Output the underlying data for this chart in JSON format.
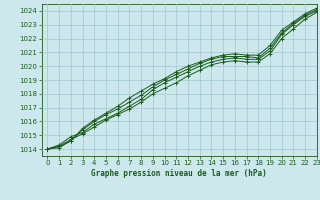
{
  "title": "Graphe pression niveau de la mer (hPa)",
  "bg_color": "#cce8ec",
  "grid_color": "#a8cdd4",
  "line_color": "#1a5c1a",
  "ylim": [
    1013.5,
    1024.5
  ],
  "xlim": [
    -0.5,
    23
  ],
  "yticks": [
    1014,
    1015,
    1016,
    1017,
    1018,
    1019,
    1020,
    1021,
    1022,
    1023,
    1024
  ],
  "xticks": [
    0,
    1,
    2,
    3,
    4,
    5,
    6,
    7,
    8,
    9,
    10,
    11,
    12,
    13,
    14,
    15,
    16,
    17,
    18,
    19,
    20,
    21,
    22,
    23
  ],
  "series": [
    [
      1014.0,
      1014.3,
      1014.9,
      1015.2,
      1015.8,
      1016.2,
      1016.6,
      1017.1,
      1017.6,
      1018.3,
      1018.8,
      1019.2,
      1019.6,
      1020.0,
      1020.3,
      1020.5,
      1020.6,
      1020.5,
      1020.5,
      1021.1,
      1022.3,
      1023.0,
      1023.6,
      1024.0
    ],
    [
      1014.0,
      1014.2,
      1014.7,
      1015.1,
      1015.6,
      1016.1,
      1016.5,
      1016.9,
      1017.4,
      1018.0,
      1018.4,
      1018.8,
      1019.3,
      1019.7,
      1020.1,
      1020.3,
      1020.4,
      1020.3,
      1020.3,
      1020.9,
      1022.0,
      1022.7,
      1023.4,
      1023.9
    ],
    [
      1014.0,
      1014.1,
      1014.6,
      1015.5,
      1016.1,
      1016.6,
      1017.1,
      1017.7,
      1018.2,
      1018.7,
      1019.1,
      1019.6,
      1020.0,
      1020.3,
      1020.6,
      1020.8,
      1020.9,
      1020.8,
      1020.8,
      1021.5,
      1022.6,
      1023.2,
      1023.8,
      1024.2
    ],
    [
      1014.0,
      1014.2,
      1014.6,
      1015.4,
      1016.0,
      1016.5,
      1016.9,
      1017.4,
      1017.9,
      1018.5,
      1019.0,
      1019.4,
      1019.8,
      1020.2,
      1020.5,
      1020.7,
      1020.7,
      1020.7,
      1020.6,
      1021.3,
      1022.4,
      1023.1,
      1023.7,
      1024.1
    ]
  ]
}
